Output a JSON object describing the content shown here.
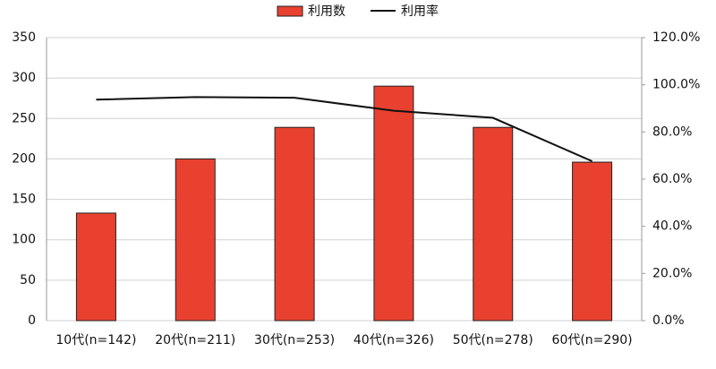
{
  "chart_data": {
    "type": "bar-line",
    "categories": [
      "10代(n=142)",
      "20代(n=211)",
      "30代(n=253)",
      "40代(n=326)",
      "50代(n=278)",
      "60代(n=290)"
    ],
    "series": [
      {
        "name": "利用数",
        "type": "bar",
        "color": "#e8412f",
        "values": [
          133,
          200,
          239,
          290,
          239,
          196
        ]
      },
      {
        "name": "利用率",
        "type": "line",
        "axis": "y2",
        "color": "#111111",
        "values": [
          93.7,
          94.8,
          94.5,
          89.0,
          86.0,
          67.6
        ]
      }
    ],
    "ylim": [
      0,
      350
    ],
    "yticks": [
      0,
      50,
      100,
      150,
      200,
      250,
      300,
      350
    ],
    "y2lim": [
      0,
      120
    ],
    "y2ticks": [
      {
        "value": 0,
        "label": "0.0%"
      },
      {
        "value": 20,
        "label": "20.0%"
      },
      {
        "value": 40,
        "label": "40.0%"
      },
      {
        "value": 60,
        "label": "60.0%"
      },
      {
        "value": 80,
        "label": "80.0%"
      },
      {
        "value": 100,
        "label": "100.0%"
      },
      {
        "value": 120,
        "label": "120.0%"
      }
    ],
    "grid": true,
    "legend": "top"
  }
}
